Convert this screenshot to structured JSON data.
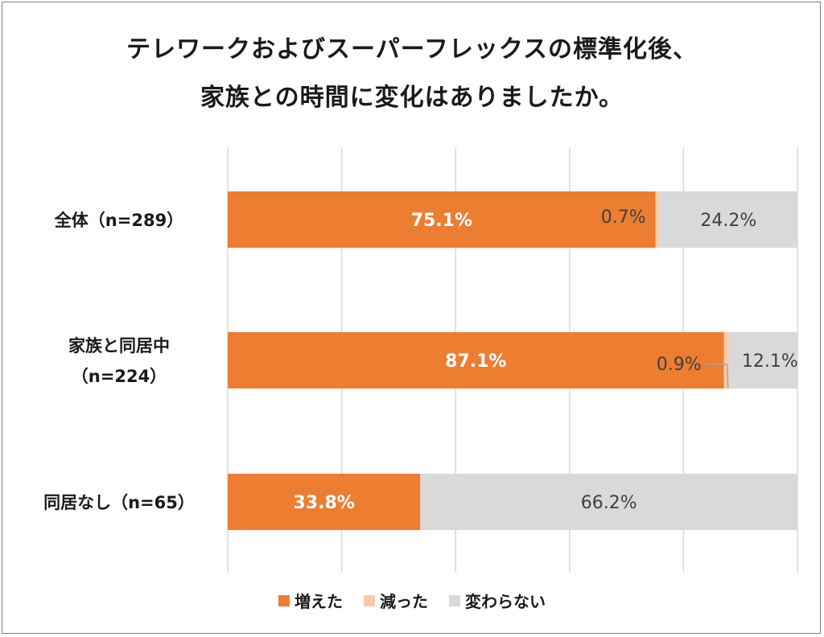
{
  "chart_data": {
    "type": "bar",
    "orientation": "horizontal",
    "stacked": true,
    "normalized": true,
    "title": "テレワークおよびスーパーフレックスの標準化後、",
    "subtitle": "家族との時間に変化はありましたか。",
    "categories": [
      {
        "label_lines": [
          "全体（n=289）"
        ]
      },
      {
        "label_lines": [
          "家族と同居中",
          "（n=224）"
        ]
      },
      {
        "label_lines": [
          "同居なし（n=65）"
        ]
      }
    ],
    "series": [
      {
        "name": "増えた",
        "color": "#ED7D31",
        "values": [
          75.1,
          87.1,
          33.8
        ],
        "labels": [
          "75.1%",
          "87.1%",
          "33.8%"
        ]
      },
      {
        "name": "減った",
        "color": "#F8CBAD",
        "values": [
          0.7,
          0.9,
          0
        ],
        "labels": [
          "0.7%",
          "0.9%",
          ""
        ]
      },
      {
        "name": "変わらない",
        "color": "#D9D9D9",
        "values": [
          24.2,
          12.1,
          66.2
        ],
        "labels": [
          "24.2%",
          "12.1%",
          "66.2%"
        ]
      }
    ],
    "xlim": [
      0,
      100
    ],
    "grid": true,
    "legend_position": "bottom"
  }
}
